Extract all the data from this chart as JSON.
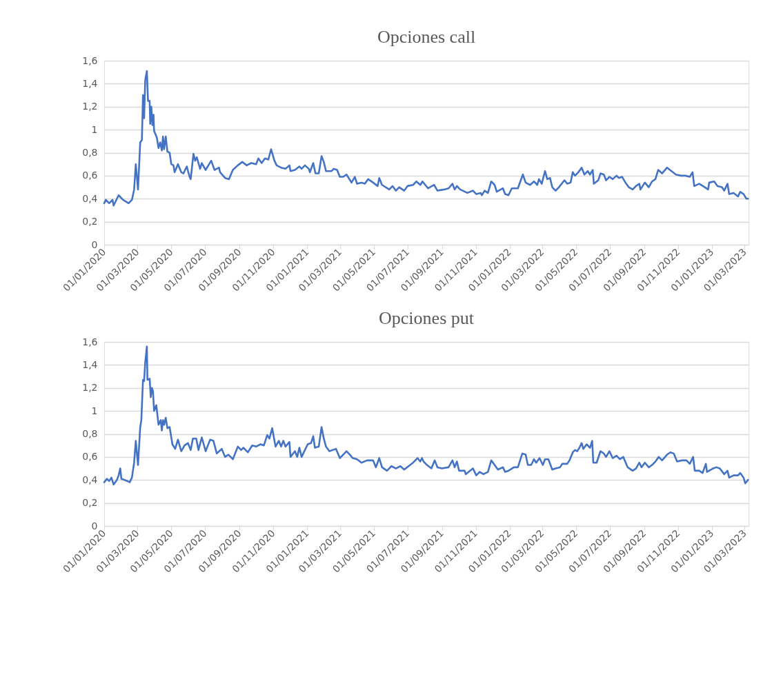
{
  "chart_data": [
    {
      "type": "line",
      "title": "Opciones call",
      "grid": "y",
      "x": [
        "2020-01-01",
        "2020-01-04",
        "2020-01-10",
        "2020-01-16",
        "2020-01-18",
        "2020-01-27",
        "2020-02-04",
        "2020-02-14",
        "2020-02-20",
        "2020-02-24",
        "2020-02-27",
        "2020-03-02",
        "2020-03-06",
        "2020-03-09",
        "2020-03-11",
        "2020-03-13",
        "2020-03-15",
        "2020-03-18",
        "2020-03-20",
        "2020-03-23",
        "2020-03-24",
        "2020-03-26",
        "2020-03-28",
        "2020-03-30",
        "2020-03-31",
        "2020-04-05",
        "2020-04-08",
        "2020-04-11",
        "2020-04-14",
        "2020-04-16",
        "2020-04-18",
        "2020-04-21",
        "2020-04-24",
        "2020-04-28",
        "2020-05-01",
        "2020-05-05",
        "2020-05-07",
        "2020-05-13",
        "2020-05-19",
        "2020-05-23",
        "2020-05-29",
        "2020-06-03",
        "2020-06-05",
        "2020-06-10",
        "2020-06-13",
        "2020-06-16",
        "2020-06-22",
        "2020-06-25",
        "2020-07-02",
        "2020-07-12",
        "2020-07-18",
        "2020-07-26",
        "2020-07-28",
        "2020-08-06",
        "2020-08-13",
        "2020-08-20",
        "2020-08-29",
        "2020-09-06",
        "2020-09-14",
        "2020-09-22",
        "2020-10-01",
        "2020-10-05",
        "2020-10-11",
        "2020-10-17",
        "2020-10-23",
        "2020-10-28",
        "2020-11-03",
        "2020-11-07",
        "2020-11-15",
        "2020-11-23",
        "2020-11-30",
        "2020-12-02",
        "2020-12-10",
        "2020-12-18",
        "2020-12-22",
        "2020-12-28",
        "2021-01-04",
        "2021-01-06",
        "2021-01-12",
        "2021-01-16",
        "2021-01-22",
        "2021-01-27",
        "2021-01-31",
        "2021-02-04",
        "2021-02-14",
        "2021-02-18",
        "2021-02-24",
        "2021-03-01",
        "2021-03-07",
        "2021-03-13",
        "2021-03-22",
        "2021-03-28",
        "2021-04-01",
        "2021-04-09",
        "2021-04-15",
        "2021-04-21",
        "2021-04-30",
        "2021-05-08",
        "2021-05-11",
        "2021-05-16",
        "2021-05-29",
        "2021-06-04",
        "2021-06-10",
        "2021-06-16",
        "2021-06-25",
        "2021-07-01",
        "2021-07-11",
        "2021-07-17",
        "2021-07-24",
        "2021-07-28",
        "2021-08-07",
        "2021-08-18",
        "2021-08-24",
        "2021-09-05",
        "2021-09-13",
        "2021-09-20",
        "2021-09-24",
        "2021-09-28",
        "2021-10-04",
        "2021-10-17",
        "2021-10-27",
        "2021-11-02",
        "2021-11-10",
        "2021-11-12",
        "2021-11-17",
        "2021-11-23",
        "2021-11-29",
        "2021-12-05",
        "2021-12-09",
        "2021-12-20",
        "2021-12-24",
        "2021-12-30",
        "2022-01-05",
        "2022-01-16",
        "2022-01-25",
        "2022-01-30",
        "2022-02-07",
        "2022-02-14",
        "2022-02-20",
        "2022-02-23",
        "2022-02-28",
        "2022-03-06",
        "2022-03-10",
        "2022-03-15",
        "2022-03-19",
        "2022-03-25",
        "2022-03-31",
        "2022-04-10",
        "2022-04-15",
        "2022-04-21",
        "2022-04-25",
        "2022-04-29",
        "2022-05-05",
        "2022-05-11",
        "2022-05-16",
        "2022-05-22",
        "2022-05-26",
        "2022-05-31",
        "2022-06-02",
        "2022-06-10",
        "2022-06-14",
        "2022-06-20",
        "2022-06-24",
        "2022-06-30",
        "2022-07-06",
        "2022-07-13",
        "2022-07-17",
        "2022-07-23",
        "2022-07-29",
        "2022-08-04",
        "2022-08-11",
        "2022-08-17",
        "2022-08-23",
        "2022-08-25",
        "2022-09-02",
        "2022-09-09",
        "2022-09-15",
        "2022-09-21",
        "2022-09-26",
        "2022-10-03",
        "2022-10-12",
        "2022-10-20",
        "2022-10-28",
        "2022-11-06",
        "2022-11-14",
        "2022-11-22",
        "2022-11-27",
        "2022-11-30",
        "2022-12-09",
        "2022-12-19",
        "2022-12-25",
        "2022-12-27",
        "2023-01-05",
        "2023-01-11",
        "2023-01-19",
        "2023-01-23",
        "2023-01-29",
        "2023-02-01",
        "2023-02-09",
        "2023-02-17",
        "2023-02-21",
        "2023-02-27",
        "2023-03-04",
        "2023-03-07"
      ],
      "series": [
        {
          "color": "#4472c4",
          "values": [
            0.36,
            0.39,
            0.36,
            0.39,
            0.34,
            0.43,
            0.39,
            0.36,
            0.39,
            0.48,
            0.7,
            0.48,
            0.89,
            0.91,
            1.3,
            1.1,
            1.43,
            1.51,
            1.25,
            1.25,
            1.05,
            1.2,
            1.04,
            1.13,
            0.99,
            0.93,
            0.84,
            0.89,
            0.82,
            0.94,
            0.83,
            0.94,
            0.81,
            0.8,
            0.7,
            0.69,
            0.63,
            0.7,
            0.63,
            0.62,
            0.68,
            0.59,
            0.57,
            0.79,
            0.73,
            0.76,
            0.66,
            0.71,
            0.65,
            0.73,
            0.65,
            0.67,
            0.63,
            0.58,
            0.57,
            0.65,
            0.69,
            0.72,
            0.69,
            0.71,
            0.7,
            0.75,
            0.71,
            0.75,
            0.74,
            0.83,
            0.73,
            0.69,
            0.67,
            0.66,
            0.69,
            0.64,
            0.65,
            0.68,
            0.66,
            0.69,
            0.66,
            0.63,
            0.71,
            0.62,
            0.62,
            0.77,
            0.72,
            0.64,
            0.64,
            0.66,
            0.65,
            0.59,
            0.59,
            0.61,
            0.54,
            0.59,
            0.53,
            0.54,
            0.53,
            0.57,
            0.54,
            0.51,
            0.58,
            0.52,
            0.48,
            0.51,
            0.47,
            0.5,
            0.47,
            0.51,
            0.52,
            0.55,
            0.52,
            0.55,
            0.49,
            0.52,
            0.47,
            0.48,
            0.49,
            0.53,
            0.48,
            0.51,
            0.48,
            0.45,
            0.47,
            0.44,
            0.45,
            0.43,
            0.47,
            0.45,
            0.55,
            0.52,
            0.46,
            0.49,
            0.44,
            0.43,
            0.49,
            0.49,
            0.61,
            0.54,
            0.52,
            0.55,
            0.52,
            0.57,
            0.53,
            0.64,
            0.57,
            0.58,
            0.5,
            0.47,
            0.5,
            0.56,
            0.53,
            0.54,
            0.63,
            0.6,
            0.63,
            0.67,
            0.61,
            0.64,
            0.61,
            0.65,
            0.53,
            0.56,
            0.62,
            0.61,
            0.56,
            0.59,
            0.57,
            0.6,
            0.58,
            0.59,
            0.54,
            0.5,
            0.48,
            0.51,
            0.53,
            0.48,
            0.54,
            0.5,
            0.55,
            0.57,
            0.65,
            0.62,
            0.67,
            0.64,
            0.61,
            0.6,
            0.6,
            0.59,
            0.63,
            0.51,
            0.53,
            0.5,
            0.48,
            0.54,
            0.55,
            0.51,
            0.5,
            0.47,
            0.53,
            0.44,
            0.45,
            0.42,
            0.46,
            0.44,
            0.4,
            0.4
          ]
        }
      ],
      "xlim": [
        "2020-01-01",
        "2023-03-08"
      ],
      "xticks": [
        {
          "value": "2020-01-01",
          "label": "01/01/2020"
        },
        {
          "value": "2020-03-01",
          "label": "01/03/2020"
        },
        {
          "value": "2020-05-01",
          "label": "01/05/2020"
        },
        {
          "value": "2020-07-01",
          "label": "01/07/2020"
        },
        {
          "value": "2020-09-01",
          "label": "01/09/2020"
        },
        {
          "value": "2020-11-01",
          "label": "01/11/2020"
        },
        {
          "value": "2021-01-01",
          "label": "01/01/2021"
        },
        {
          "value": "2021-03-01",
          "label": "01/03/2021"
        },
        {
          "value": "2021-05-01",
          "label": "01/05/2021"
        },
        {
          "value": "2021-07-01",
          "label": "01/07/2021"
        },
        {
          "value": "2021-09-01",
          "label": "01/09/2021"
        },
        {
          "value": "2021-11-01",
          "label": "01/11/2021"
        },
        {
          "value": "2022-01-01",
          "label": "01/01/2022"
        },
        {
          "value": "2022-03-01",
          "label": "01/03/2022"
        },
        {
          "value": "2022-05-01",
          "label": "01/05/2022"
        },
        {
          "value": "2022-07-01",
          "label": "01/07/2022"
        },
        {
          "value": "2022-09-01",
          "label": "01/09/2022"
        },
        {
          "value": "2022-11-01",
          "label": "01/11/2022"
        },
        {
          "value": "2023-01-01",
          "label": "01/01/2023"
        },
        {
          "value": "2023-03-01",
          "label": "01/03/2023"
        }
      ],
      "ylim": [
        0,
        1.6
      ],
      "yticks": [
        {
          "value": 0,
          "label": "0"
        },
        {
          "value": 0.2,
          "label": "0,2"
        },
        {
          "value": 0.4,
          "label": "0,4"
        },
        {
          "value": 0.6,
          "label": "0,6"
        },
        {
          "value": 0.8,
          "label": "0,8"
        },
        {
          "value": 1,
          "label": "1"
        },
        {
          "value": 1.2,
          "label": "1,2"
        },
        {
          "value": 1.4,
          "label": "1,4"
        },
        {
          "value": 1.6,
          "label": "1,6"
        }
      ]
    },
    {
      "type": "line",
      "title": "Opciones put",
      "grid": "y",
      "x": [
        "2020-01-01",
        "2020-01-06",
        "2020-01-10",
        "2020-01-14",
        "2020-01-18",
        "2020-01-24",
        "2020-01-27",
        "2020-01-30",
        "2020-02-01",
        "2020-02-12",
        "2020-02-16",
        "2020-02-20",
        "2020-02-24",
        "2020-02-27",
        "2020-03-02",
        "2020-03-06",
        "2020-03-08",
        "2020-03-11",
        "2020-03-13",
        "2020-03-15",
        "2020-03-18",
        "2020-03-19",
        "2020-03-23",
        "2020-03-25",
        "2020-03-27",
        "2020-03-29",
        "2020-03-31",
        "2020-04-04",
        "2020-04-08",
        "2020-04-12",
        "2020-04-14",
        "2020-04-16",
        "2020-04-18",
        "2020-04-21",
        "2020-04-24",
        "2020-04-28",
        "2020-05-03",
        "2020-05-08",
        "2020-05-13",
        "2020-05-19",
        "2020-05-25",
        "2020-05-31",
        "2020-06-05",
        "2020-06-09",
        "2020-06-15",
        "2020-06-19",
        "2020-06-25",
        "2020-07-02",
        "2020-07-10",
        "2020-07-16",
        "2020-07-22",
        "2020-07-31",
        "2020-08-06",
        "2020-08-12",
        "2020-08-20",
        "2020-08-29",
        "2020-09-04",
        "2020-09-08",
        "2020-09-16",
        "2020-09-24",
        "2020-10-01",
        "2020-10-09",
        "2020-10-15",
        "2020-10-21",
        "2020-10-25",
        "2020-10-30",
        "2020-11-05",
        "2020-11-11",
        "2020-11-15",
        "2020-11-19",
        "2020-11-23",
        "2020-11-30",
        "2020-12-02",
        "2020-12-10",
        "2020-12-14",
        "2020-12-18",
        "2020-12-22",
        "2021-01-02",
        "2021-01-08",
        "2021-01-12",
        "2021-01-15",
        "2021-01-22",
        "2021-01-27",
        "2021-01-31",
        "2021-02-04",
        "2021-02-10",
        "2021-02-16",
        "2021-02-22",
        "2021-03-01",
        "2021-03-07",
        "2021-03-13",
        "2021-03-19",
        "2021-03-24",
        "2021-04-01",
        "2021-04-09",
        "2021-04-19",
        "2021-04-30",
        "2021-05-05",
        "2021-05-11",
        "2021-05-16",
        "2021-05-25",
        "2021-06-02",
        "2021-06-10",
        "2021-06-18",
        "2021-06-25",
        "2021-07-03",
        "2021-07-11",
        "2021-07-19",
        "2021-07-24",
        "2021-07-27",
        "2021-07-30",
        "2021-08-05",
        "2021-08-13",
        "2021-08-19",
        "2021-08-24",
        "2021-09-01",
        "2021-09-13",
        "2021-09-20",
        "2021-09-24",
        "2021-09-28",
        "2021-10-02",
        "2021-10-12",
        "2021-10-14",
        "2021-10-27",
        "2021-11-02",
        "2021-11-08",
        "2021-11-15",
        "2021-11-23",
        "2021-11-29",
        "2021-12-05",
        "2021-12-11",
        "2021-12-20",
        "2021-12-24",
        "2021-12-30",
        "2022-01-09",
        "2022-01-16",
        "2022-01-24",
        "2022-01-30",
        "2022-02-03",
        "2022-02-09",
        "2022-02-14",
        "2022-02-18",
        "2022-02-24",
        "2022-03-02",
        "2022-03-06",
        "2022-03-12",
        "2022-03-19",
        "2022-03-25",
        "2022-04-02",
        "2022-04-06",
        "2022-04-15",
        "2022-04-19",
        "2022-04-25",
        "2022-04-29",
        "2022-05-03",
        "2022-05-07",
        "2022-05-11",
        "2022-05-14",
        "2022-05-20",
        "2022-05-26",
        "2022-05-30",
        "2022-06-01",
        "2022-06-07",
        "2022-06-14",
        "2022-06-20",
        "2022-06-24",
        "2022-06-30",
        "2022-07-06",
        "2022-07-13",
        "2022-07-19",
        "2022-07-25",
        "2022-08-02",
        "2022-08-11",
        "2022-08-17",
        "2022-08-23",
        "2022-08-27",
        "2022-09-02",
        "2022-09-09",
        "2022-09-15",
        "2022-09-21",
        "2022-09-27",
        "2022-10-03",
        "2022-10-12",
        "2022-10-18",
        "2022-10-24",
        "2022-10-30",
        "2022-11-08",
        "2022-11-16",
        "2022-11-22",
        "2022-11-28",
        "2022-12-01",
        "2022-12-09",
        "2022-12-15",
        "2022-12-21",
        "2022-12-23",
        "2023-01-03",
        "2023-01-09",
        "2023-01-15",
        "2023-01-23",
        "2023-01-29",
        "2023-02-01",
        "2023-02-09",
        "2023-02-17",
        "2023-02-21",
        "2023-02-27",
        "2023-03-02",
        "2023-03-07"
      ],
      "series": [
        {
          "color": "#4472c4",
          "values": [
            0.38,
            0.41,
            0.39,
            0.42,
            0.36,
            0.4,
            0.44,
            0.5,
            0.41,
            0.39,
            0.38,
            0.42,
            0.55,
            0.74,
            0.53,
            0.86,
            0.92,
            1.27,
            1.26,
            1.42,
            1.56,
            1.27,
            1.28,
            1.12,
            1.2,
            1.17,
            1.0,
            1.05,
            0.88,
            0.92,
            0.83,
            0.92,
            0.88,
            0.94,
            0.85,
            0.86,
            0.71,
            0.67,
            0.75,
            0.65,
            0.7,
            0.72,
            0.66,
            0.76,
            0.76,
            0.66,
            0.77,
            0.65,
            0.75,
            0.74,
            0.63,
            0.67,
            0.6,
            0.62,
            0.58,
            0.69,
            0.66,
            0.68,
            0.64,
            0.7,
            0.69,
            0.71,
            0.7,
            0.79,
            0.76,
            0.85,
            0.69,
            0.74,
            0.69,
            0.74,
            0.69,
            0.73,
            0.6,
            0.65,
            0.6,
            0.68,
            0.6,
            0.71,
            0.72,
            0.78,
            0.68,
            0.69,
            0.86,
            0.76,
            0.69,
            0.65,
            0.66,
            0.67,
            0.59,
            0.62,
            0.65,
            0.62,
            0.59,
            0.58,
            0.55,
            0.57,
            0.57,
            0.51,
            0.59,
            0.51,
            0.48,
            0.52,
            0.5,
            0.52,
            0.49,
            0.52,
            0.55,
            0.59,
            0.56,
            0.59,
            0.56,
            0.53,
            0.5,
            0.57,
            0.51,
            0.5,
            0.51,
            0.57,
            0.51,
            0.56,
            0.48,
            0.48,
            0.45,
            0.5,
            0.44,
            0.47,
            0.45,
            0.47,
            0.57,
            0.53,
            0.49,
            0.51,
            0.47,
            0.48,
            0.51,
            0.51,
            0.63,
            0.62,
            0.53,
            0.53,
            0.58,
            0.55,
            0.59,
            0.53,
            0.58,
            0.58,
            0.49,
            0.5,
            0.51,
            0.54,
            0.54,
            0.57,
            0.64,
            0.66,
            0.65,
            0.68,
            0.72,
            0.67,
            0.71,
            0.68,
            0.74,
            0.55,
            0.55,
            0.65,
            0.63,
            0.6,
            0.65,
            0.59,
            0.61,
            0.58,
            0.6,
            0.51,
            0.48,
            0.5,
            0.55,
            0.51,
            0.55,
            0.51,
            0.53,
            0.56,
            0.6,
            0.57,
            0.62,
            0.64,
            0.63,
            0.56,
            0.57,
            0.57,
            0.54,
            0.6,
            0.48,
            0.48,
            0.46,
            0.54,
            0.47,
            0.5,
            0.51,
            0.5,
            0.45,
            0.48,
            0.42,
            0.44,
            0.44,
            0.46,
            0.42,
            0.37,
            0.4
          ]
        }
      ],
      "xlim": [
        "2020-01-01",
        "2023-03-08"
      ],
      "xticks": [
        {
          "value": "2020-01-01",
          "label": "01/01/2020"
        },
        {
          "value": "2020-03-01",
          "label": "01/03/2020"
        },
        {
          "value": "2020-05-01",
          "label": "01/05/2020"
        },
        {
          "value": "2020-07-01",
          "label": "01/07/2020"
        },
        {
          "value": "2020-09-01",
          "label": "01/09/2020"
        },
        {
          "value": "2020-11-01",
          "label": "01/11/2020"
        },
        {
          "value": "2021-01-01",
          "label": "01/01/2021"
        },
        {
          "value": "2021-03-01",
          "label": "01/03/2021"
        },
        {
          "value": "2021-05-01",
          "label": "01/05/2021"
        },
        {
          "value": "2021-07-01",
          "label": "01/07/2021"
        },
        {
          "value": "2021-09-01",
          "label": "01/09/2021"
        },
        {
          "value": "2021-11-01",
          "label": "01/11/2021"
        },
        {
          "value": "2022-01-01",
          "label": "01/01/2022"
        },
        {
          "value": "2022-03-01",
          "label": "01/03/2022"
        },
        {
          "value": "2022-05-01",
          "label": "01/05/2022"
        },
        {
          "value": "2022-07-01",
          "label": "01/07/2022"
        },
        {
          "value": "2022-09-01",
          "label": "01/09/2022"
        },
        {
          "value": "2022-11-01",
          "label": "01/11/2022"
        },
        {
          "value": "2023-01-01",
          "label": "01/01/2023"
        },
        {
          "value": "2023-03-01",
          "label": "01/03/2023"
        }
      ],
      "ylim": [
        0,
        1.6
      ],
      "yticks": [
        {
          "value": 0,
          "label": "0"
        },
        {
          "value": 0.2,
          "label": "0,2"
        },
        {
          "value": 0.4,
          "label": "0,4"
        },
        {
          "value": 0.6,
          "label": "0,6"
        },
        {
          "value": 0.8,
          "label": "0,8"
        },
        {
          "value": 1,
          "label": "1"
        },
        {
          "value": 1.2,
          "label": "1,2"
        },
        {
          "value": 1.4,
          "label": "1,4"
        },
        {
          "value": 1.6,
          "label": "1,6"
        }
      ]
    }
  ]
}
